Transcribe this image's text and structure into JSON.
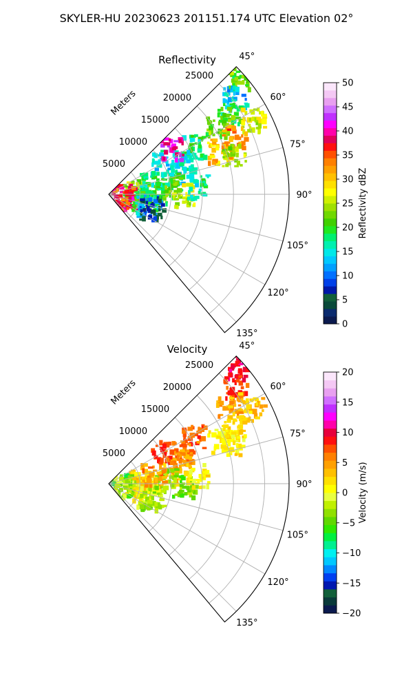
{
  "title": "SKYLER-HU  20230623  201151.174 UTC Elevation 02°",
  "chart_data": [
    {
      "type": "heatmap",
      "panel": "reflectivity",
      "title": "Reflectivity",
      "radial_axis_label": "Meters",
      "range_ticks": [
        "5000",
        "10000",
        "15000",
        "20000",
        "25000"
      ],
      "azimuth_ticks": [
        "45°",
        "60°",
        "75°",
        "90°",
        "105°",
        "120°",
        "135°"
      ],
      "azimuth_range_deg": [
        45,
        140
      ],
      "range_max_m": 30000,
      "colorbar": {
        "label": "Reflectivity dBZ",
        "ticks": [
          "0",
          "5",
          "10",
          "15",
          "20",
          "25",
          "30",
          "35",
          "40",
          "45",
          "50"
        ],
        "vmin": 0,
        "vmax": 50,
        "colors": [
          "#0b1a4e",
          "#0b2b6e",
          "#0a4a3a",
          "#12603a",
          "#0018a8",
          "#0040e8",
          "#0070ff",
          "#00a0ff",
          "#00c8ff",
          "#00e8e8",
          "#00f0b0",
          "#00f070",
          "#20e820",
          "#40d000",
          "#70d800",
          "#a0e000",
          "#d0f000",
          "#ffff00",
          "#ffe000",
          "#ffc000",
          "#ffa000",
          "#ff8000",
          "#ff5000",
          "#ff1010",
          "#e0005a",
          "#ff00aa",
          "#ff00ff",
          "#c030ff",
          "#d070ff",
          "#e8a0f0",
          "#f4c8f4",
          "#fbe6fb"
        ]
      },
      "echoes": [
        {
          "az": 48,
          "r": 28000,
          "value": 22
        },
        {
          "az": 52,
          "r": 25500,
          "value": 14
        },
        {
          "az": 56,
          "r": 23000,
          "value": 20
        },
        {
          "az": 58,
          "r": 20500,
          "value": 22
        },
        {
          "az": 62,
          "r": 26000,
          "value": 26
        },
        {
          "az": 65,
          "r": 22000,
          "value": 33
        },
        {
          "az": 68,
          "r": 19000,
          "value": 30
        },
        {
          "az": 72,
          "r": 21000,
          "value": 24
        },
        {
          "az": 60,
          "r": 15500,
          "value": 18
        },
        {
          "az": 66,
          "r": 13000,
          "value": 16
        },
        {
          "az": 72,
          "r": 12000,
          "value": 15
        },
        {
          "az": 80,
          "r": 10000,
          "value": 20
        },
        {
          "az": 86,
          "r": 9000,
          "value": 22
        },
        {
          "az": 90,
          "r": 12000,
          "value": 26
        },
        {
          "az": 84,
          "r": 14000,
          "value": 17
        },
        {
          "az": 88,
          "r": 6000,
          "value": 18
        },
        {
          "az": 92,
          "r": 4000,
          "value": 20
        },
        {
          "az": 82,
          "r": 4500,
          "value": 24
        },
        {
          "az": 95,
          "r": 2000,
          "value": 38
        },
        {
          "az": 100,
          "r": 2500,
          "value": 36
        },
        {
          "az": 98,
          "r": 5500,
          "value": 19
        },
        {
          "az": 105,
          "r": 6500,
          "value": 12
        },
        {
          "az": 108,
          "r": 7000,
          "value": 6
        },
        {
          "az": 75,
          "r": 7000,
          "value": 18
        },
        {
          "az": 58,
          "r": 10000,
          "value": 15
        },
        {
          "az": 54,
          "r": 12500,
          "value": 41
        }
      ]
    },
    {
      "type": "heatmap",
      "panel": "velocity",
      "title": "Velocity",
      "radial_axis_label": "Meters",
      "range_ticks": [
        "5000",
        "10000",
        "15000",
        "20000",
        "25000"
      ],
      "azimuth_ticks": [
        "45°",
        "60°",
        "75°",
        "90°",
        "105°",
        "120°",
        "135°"
      ],
      "azimuth_range_deg": [
        45,
        140
      ],
      "range_max_m": 30000,
      "colorbar": {
        "label": "Velocity (m/s)",
        "ticks": [
          "−20",
          "−15",
          "−10",
          "−5",
          "0",
          "5",
          "10",
          "15",
          "20"
        ],
        "vmin": -20,
        "vmax": 20,
        "colors": [
          "#0b1a4e",
          "#0a3a3a",
          "#12603a",
          "#0018b0",
          "#0040f0",
          "#0088ff",
          "#00c8ff",
          "#00f0f0",
          "#00f090",
          "#00f040",
          "#30e800",
          "#60d800",
          "#90e000",
          "#c0f000",
          "#e8ff40",
          "#ffff00",
          "#ffe000",
          "#ffc000",
          "#ffa000",
          "#ff8000",
          "#ff5000",
          "#ff1010",
          "#e8003c",
          "#ff00aa",
          "#ff00ff",
          "#c030ff",
          "#d070ff",
          "#e8a0f0",
          "#f4c8f4",
          "#fbe6fb"
        ]
      },
      "echoes": [
        {
          "az": 48,
          "r": 28000,
          "value": 10
        },
        {
          "az": 52,
          "r": 25500,
          "value": 8
        },
        {
          "az": 56,
          "r": 23000,
          "value": 4
        },
        {
          "az": 62,
          "r": 26000,
          "value": 3
        },
        {
          "az": 65,
          "r": 22000,
          "value": 2
        },
        {
          "az": 68,
          "r": 19000,
          "value": 1
        },
        {
          "az": 72,
          "r": 21000,
          "value": 1
        },
        {
          "az": 60,
          "r": 15500,
          "value": 7
        },
        {
          "az": 66,
          "r": 13000,
          "value": 6
        },
        {
          "az": 72,
          "r": 12000,
          "value": 4
        },
        {
          "az": 80,
          "r": 10000,
          "value": 3
        },
        {
          "az": 86,
          "r": 9000,
          "value": -3
        },
        {
          "az": 90,
          "r": 12000,
          "value": -4
        },
        {
          "az": 84,
          "r": 14000,
          "value": 1
        },
        {
          "az": 88,
          "r": 6000,
          "value": 1
        },
        {
          "az": 92,
          "r": 4000,
          "value": 0
        },
        {
          "az": 82,
          "r": 4500,
          "value": 3
        },
        {
          "az": 95,
          "r": 2000,
          "value": -5
        },
        {
          "az": 100,
          "r": 2500,
          "value": -2
        },
        {
          "az": 98,
          "r": 5500,
          "value": 2
        },
        {
          "az": 105,
          "r": 6500,
          "value": -1
        },
        {
          "az": 108,
          "r": 7000,
          "value": -3
        },
        {
          "az": 75,
          "r": 7000,
          "value": 5
        },
        {
          "az": 58,
          "r": 10000,
          "value": 7
        }
      ]
    }
  ]
}
